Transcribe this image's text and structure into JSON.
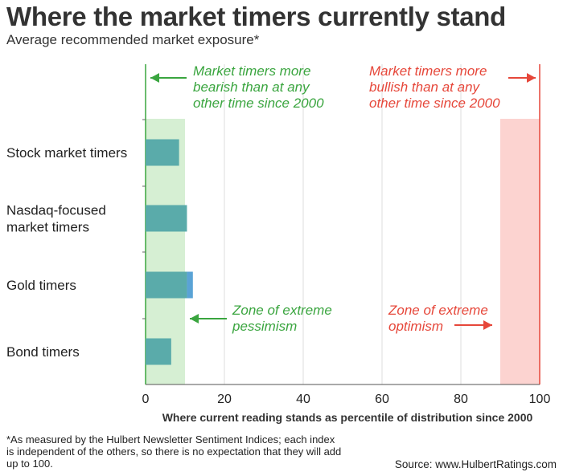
{
  "chart_data": {
    "type": "bar",
    "orientation": "horizontal",
    "title": "Where the market timers currently stand",
    "subtitle": "Average recommended market exposure*",
    "categories": [
      [
        "Stock market timers"
      ],
      [
        "Nasdaq-focused",
        "market timers"
      ],
      [
        "Gold timers"
      ],
      [
        "Bond timers"
      ]
    ],
    "values": [
      8.5,
      10.5,
      12,
      6.5
    ],
    "xlabel": "Where current reading stands as percentile of distribution since 2000",
    "xlim": [
      0,
      100
    ],
    "xticks": [
      0,
      20,
      40,
      60,
      80,
      100
    ],
    "grid": "vertical",
    "zones": [
      {
        "from": 0,
        "to": 10,
        "color": "#d6efd3",
        "label": [
          "Zone of extreme",
          "pessimism"
        ],
        "label_color": "#3aa53f"
      },
      {
        "from": 90,
        "to": 100,
        "color": "#fcd3d0",
        "label": [
          "Zone of extreme",
          "optimism"
        ],
        "label_color": "#e6473a"
      }
    ],
    "annotations": [
      {
        "text": [
          "Market timers more",
          "bearish than at any",
          "other time since 2000"
        ],
        "color": "#3aa53f",
        "points_to": 0
      },
      {
        "text": [
          "Market timers more",
          "bullish than at any",
          "other time since 2000"
        ],
        "color": "#e6473a",
        "points_to": 100
      }
    ],
    "colors": {
      "bar": "#5aabaa",
      "bar_highlight": "#5aa3d6",
      "green": "#3aa53f",
      "red": "#e6473a",
      "grid": "#dddddd"
    }
  },
  "footnote": "*As measured by the Hulbert Newsletter Sentiment Indices; each index is independent of the others, so there is no expectation that they will add up to 100.",
  "source": "Source: www.HulbertRatings.com"
}
